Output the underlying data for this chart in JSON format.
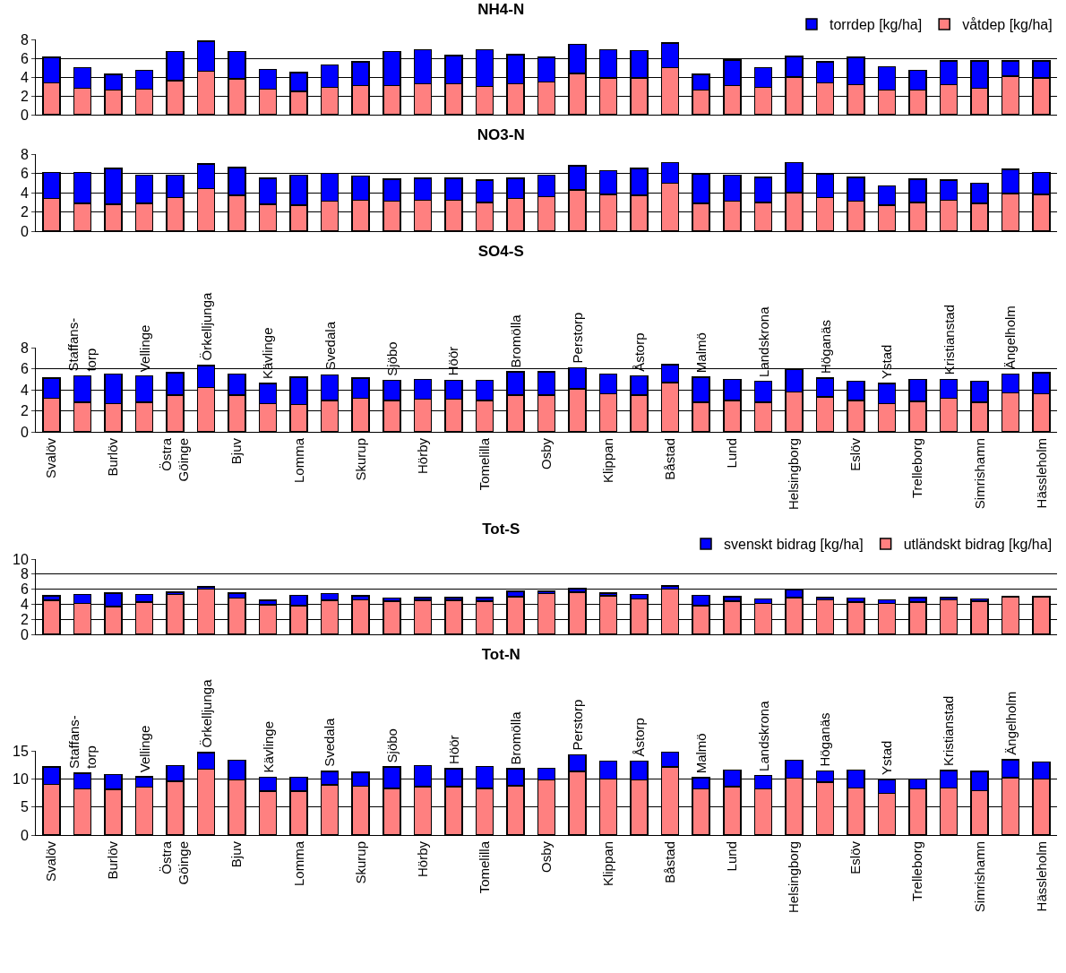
{
  "chart_data": [
    {
      "type": "bar",
      "title": "NH4-N",
      "stacked": true,
      "grid": "y",
      "legend": "top right",
      "tick_labels": "y",
      "ylim": [
        0,
        8
      ],
      "yticks": [
        0,
        2,
        4,
        6,
        8
      ],
      "categories": [
        null,
        null,
        null,
        null,
        null,
        null,
        null,
        null,
        null,
        null,
        null,
        null,
        null,
        null,
        null,
        null,
        null,
        null,
        null,
        null,
        null,
        null,
        null,
        null,
        null,
        null,
        null,
        null,
        null,
        null,
        null,
        null,
        null
      ],
      "series": [
        {
          "name": "våtdep [kg/ha]",
          "color": "#ff8080",
          "values": [
            3.4,
            2.8,
            2.6,
            2.7,
            3.6,
            4.6,
            3.8,
            2.7,
            2.5,
            2.9,
            3.1,
            3.1,
            3.3,
            3.3,
            3.0,
            3.3,
            3.5,
            4.4,
            3.9,
            3.9,
            5.0,
            2.6,
            3.1,
            2.9,
            4.0,
            3.4,
            3.2,
            2.6,
            2.6,
            3.2,
            2.8,
            4.1,
            3.9
          ]
        },
        {
          "name": "torrdep [kg/ha]",
          "color": "#0000ff",
          "values": [
            2.7,
            2.2,
            1.7,
            2.0,
            3.1,
            3.2,
            2.9,
            2.1,
            2.0,
            2.4,
            2.5,
            3.6,
            3.6,
            3.0,
            3.9,
            3.1,
            2.6,
            3.1,
            3.0,
            2.9,
            2.6,
            1.7,
            2.7,
            2.1,
            2.2,
            2.2,
            2.9,
            2.5,
            2.1,
            2.5,
            2.9,
            1.6,
            1.8
          ]
        }
      ]
    },
    {
      "type": "bar",
      "title": "NO3-N",
      "stacked": true,
      "grid": "y",
      "tick_labels": "y",
      "ylim": [
        0,
        8
      ],
      "yticks": [
        0,
        2,
        4,
        6,
        8
      ],
      "categories": [
        null,
        null,
        null,
        null,
        null,
        null,
        null,
        null,
        null,
        null,
        null,
        null,
        null,
        null,
        null,
        null,
        null,
        null,
        null,
        null,
        null,
        null,
        null,
        null,
        null,
        null,
        null,
        null,
        null,
        null,
        null,
        null,
        null
      ],
      "series": [
        {
          "color": "#ff8080",
          "values": [
            3.4,
            2.9,
            2.8,
            2.9,
            3.5,
            4.4,
            3.7,
            2.8,
            2.7,
            3.1,
            3.2,
            3.1,
            3.2,
            3.2,
            3.0,
            3.4,
            3.6,
            4.3,
            3.8,
            3.7,
            5.0,
            2.9,
            3.1,
            3.0,
            4.0,
            3.5,
            3.1,
            2.7,
            3.0,
            3.2,
            2.9,
            3.9,
            3.8
          ]
        },
        {
          "color": "#0000ff",
          "values": [
            2.7,
            3.2,
            3.7,
            2.9,
            2.3,
            2.6,
            2.9,
            2.7,
            3.1,
            2.9,
            2.5,
            2.3,
            2.3,
            2.3,
            2.3,
            2.1,
            2.2,
            2.5,
            2.5,
            2.8,
            2.1,
            3.0,
            2.7,
            2.6,
            3.1,
            2.4,
            2.5,
            2.0,
            2.4,
            2.1,
            2.1,
            2.5,
            2.3
          ]
        }
      ]
    },
    {
      "type": "bar",
      "title": "SO4-S",
      "stacked": true,
      "grid": "y",
      "ylim": [
        0,
        8
      ],
      "yticks": [
        0,
        2,
        4,
        6,
        8
      ],
      "categories": [
        "Svalöv",
        "Staffans-\ntorp",
        "Burlöv",
        "Vellinge",
        "Östra\nGöinge",
        "Örkelljunga",
        "Bjuv",
        "Kävlinge",
        "Lomma",
        "Svedala",
        "Skurup",
        "Sjöbo",
        "Hörby",
        "Höör",
        "Tomelilla",
        "Bromölla",
        "Osby",
        "Perstorp",
        "Klippan",
        "Åstorp",
        "Båstad",
        "Malmö",
        "Lund",
        "Landskrona",
        "Helsingborg",
        "Höganäs",
        "Eslöv",
        "Ystad",
        "Trelleborg",
        "Kristianstad",
        "Simrishamn",
        "Ängelholm",
        "Hässleholm"
      ],
      "series": [
        {
          "color": "#ff8080",
          "values": [
            3.2,
            2.8,
            2.7,
            2.8,
            3.5,
            4.2,
            3.5,
            2.7,
            2.6,
            3.0,
            3.2,
            3.0,
            3.1,
            3.1,
            3.0,
            3.5,
            3.5,
            4.1,
            3.6,
            3.5,
            4.7,
            2.8,
            3.0,
            2.8,
            3.8,
            3.3,
            3.0,
            2.7,
            2.9,
            3.2,
            2.8,
            3.7,
            3.6
          ]
        },
        {
          "color": "#0000ff",
          "values": [
            1.9,
            2.5,
            2.8,
            2.5,
            2.1,
            2.1,
            2.0,
            1.9,
            2.6,
            2.4,
            1.9,
            1.9,
            1.9,
            1.8,
            1.9,
            2.2,
            2.2,
            2.0,
            1.9,
            1.8,
            1.7,
            2.4,
            2.0,
            2.0,
            2.1,
            1.8,
            1.8,
            1.9,
            2.1,
            1.8,
            2.0,
            1.8,
            2.0
          ]
        }
      ]
    },
    {
      "type": "bar",
      "title": "Tot-S",
      "stacked": true,
      "grid": "y",
      "legend": "top right",
      "tick_labels": "y",
      "ylim": [
        0,
        10
      ],
      "yticks": [
        0,
        2,
        4,
        6,
        8,
        10
      ],
      "categories": [
        null,
        null,
        null,
        null,
        null,
        null,
        null,
        null,
        null,
        null,
        null,
        null,
        null,
        null,
        null,
        null,
        null,
        null,
        null,
        null,
        null,
        null,
        null,
        null,
        null,
        null,
        null,
        null,
        null,
        null,
        null,
        null,
        null
      ],
      "series": [
        {
          "name": "utländskt bidrag [kg/ha]",
          "color": "#ff8080",
          "values": [
            4.5,
            4.1,
            3.7,
            4.3,
            5.3,
            6.0,
            4.8,
            3.9,
            3.8,
            4.5,
            4.6,
            4.4,
            4.5,
            4.5,
            4.4,
            5.0,
            5.4,
            5.6,
            5.1,
            4.7,
            6.0,
            3.8,
            4.4,
            4.1,
            4.9,
            4.6,
            4.3,
            4.1,
            4.3,
            4.6,
            4.4,
            5.0,
            5.0
          ]
        },
        {
          "name": "svenskt bidrag [kg/ha]",
          "color": "#0000ff",
          "values": [
            0.6,
            1.2,
            1.8,
            1.0,
            0.3,
            0.3,
            0.7,
            0.6,
            1.4,
            0.9,
            0.5,
            0.4,
            0.4,
            0.4,
            0.5,
            0.7,
            0.3,
            0.5,
            0.4,
            0.6,
            0.4,
            1.4,
            0.6,
            0.6,
            1.0,
            0.3,
            0.5,
            0.5,
            0.6,
            0.3,
            0.3,
            null,
            null
          ]
        }
      ]
    },
    {
      "type": "bar",
      "title": "Tot-N",
      "stacked": true,
      "grid": "y",
      "ylim": [
        0,
        15
      ],
      "yticks": [
        0,
        5,
        10,
        15
      ],
      "categories": [
        "Svalöv",
        "Staffans-\ntorp",
        "Burlöv",
        "Vellinge",
        "Östra\nGöinge",
        "Örkelljunga",
        "Bjuv",
        "Kävlinge",
        "Lomma",
        "Svedala",
        "Skurup",
        "Sjöbo",
        "Hörby",
        "Höör",
        "Tomelilla",
        "Bromölla",
        "Osby",
        "Perstorp",
        "Klippan",
        "Åstorp",
        "Båstad",
        "Malmö",
        "Lund",
        "Landskrona",
        "Helsingborg",
        "Höganäs",
        "Eslöv",
        "Ystad",
        "Trelleborg",
        "Kristianstad",
        "Simrishamn",
        "Ängelholm",
        "Hässleholm"
      ],
      "series": [
        {
          "color": "#ff8080",
          "values": [
            9.0,
            8.2,
            8.1,
            8.5,
            9.6,
            11.7,
            9.8,
            7.8,
            7.8,
            8.9,
            8.7,
            8.3,
            8.6,
            8.6,
            8.3,
            8.8,
            9.8,
            11.3,
            10.0,
            9.8,
            12.1,
            8.2,
            8.6,
            8.2,
            10.1,
            9.4,
            8.4,
            7.4,
            8.2,
            8.4,
            7.9,
            10.2,
            10.0
          ]
        },
        {
          "color": "#0000ff",
          "values": [
            3.1,
            2.8,
            2.7,
            1.9,
            2.8,
            3.0,
            3.5,
            2.5,
            2.5,
            2.4,
            2.5,
            3.8,
            3.8,
            3.2,
            3.9,
            3.0,
            2.1,
            3.0,
            3.2,
            3.4,
            2.7,
            2.0,
            3.0,
            2.4,
            3.2,
            2.0,
            3.2,
            2.5,
            1.8,
            3.1,
            3.4,
            3.2,
            3.0
          ]
        }
      ]
    }
  ]
}
